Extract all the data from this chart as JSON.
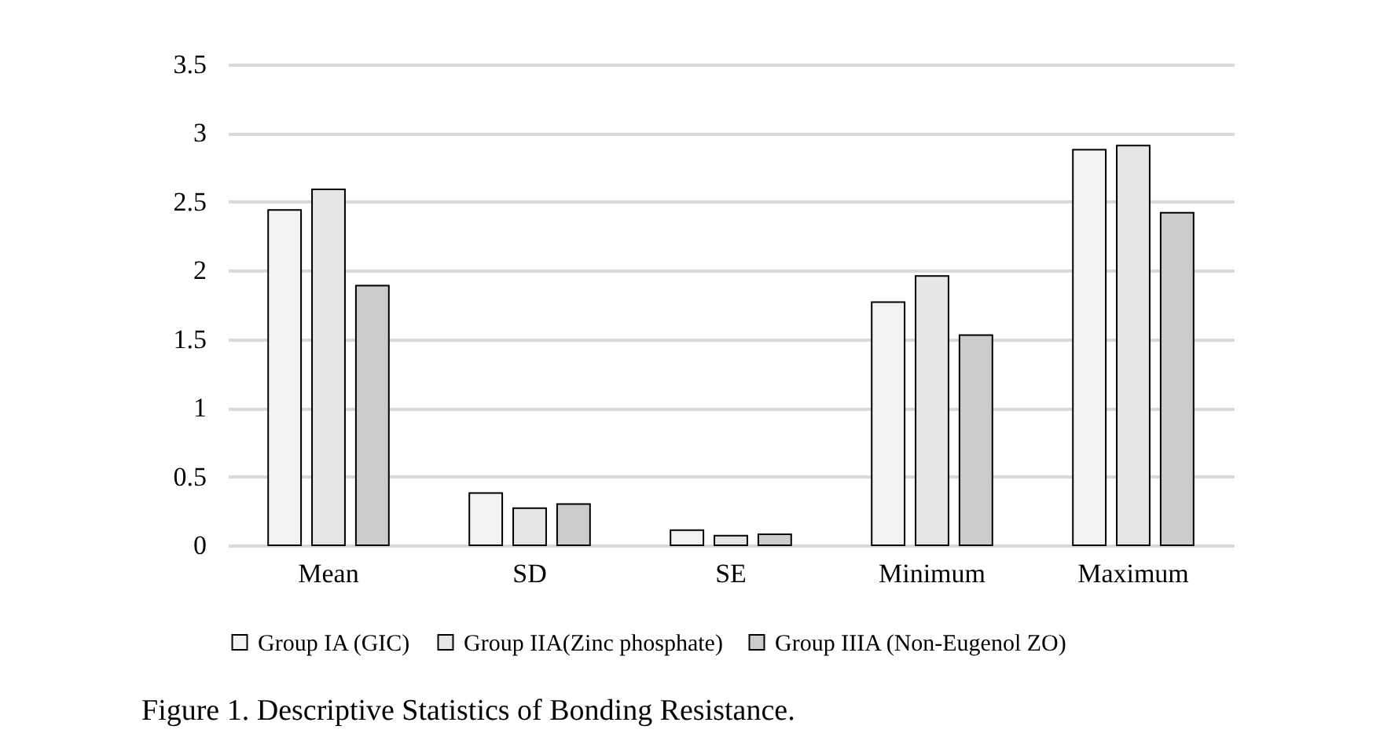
{
  "chart_data": {
    "type": "bar",
    "categories": [
      "Mean",
      "SD",
      "SE",
      "Minimum",
      "Maximum"
    ],
    "series": [
      {
        "name": "Group IA (GIC)",
        "color": "#f2f2f2",
        "values": [
          2.44,
          0.38,
          0.11,
          1.77,
          2.88
        ]
      },
      {
        "name": "Group IIA(Zinc phosphate)",
        "color": "#e6e6e6",
        "values": [
          2.59,
          0.27,
          0.07,
          1.96,
          2.91
        ]
      },
      {
        "name": "Group IIIA (Non-Eugenol ZO)",
        "color": "#cccccc",
        "values": [
          1.89,
          0.3,
          0.08,
          1.53,
          2.42
        ]
      }
    ],
    "ylim": [
      0,
      3.5
    ],
    "yticks": [
      0,
      0.5,
      1,
      1.5,
      2,
      2.5,
      3,
      3.5
    ],
    "grid": "y",
    "legend": "bottom",
    "annotations": [
      "Figure 1. Descriptive Statistics of Bonding Resistance."
    ]
  }
}
